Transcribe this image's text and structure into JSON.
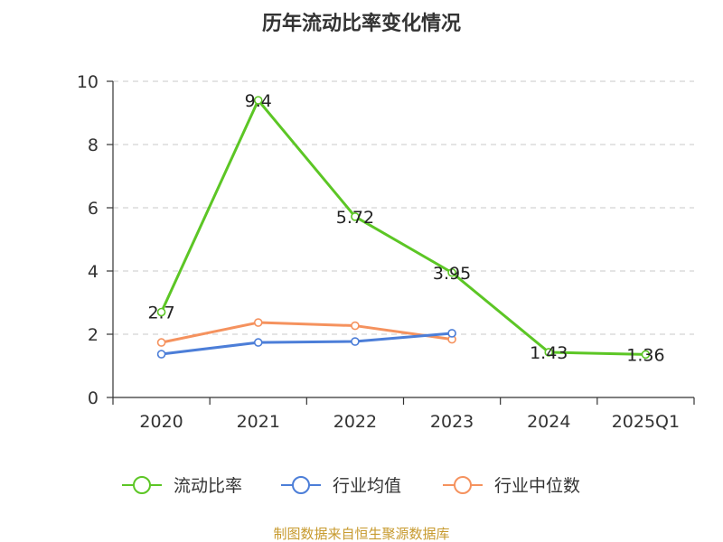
{
  "chart_data": {
    "type": "line",
    "title": "历年流动比率变化情况",
    "categories": [
      "2020",
      "2021",
      "2022",
      "2023",
      "2024",
      "2025Q1"
    ],
    "ylim": [
      0,
      10
    ],
    "yticks": [
      "0",
      "2",
      "4",
      "6",
      "8",
      "10"
    ],
    "grid": true,
    "legend_position": "bottom",
    "series": [
      {
        "name": "流动比率",
        "color": "#5cc625",
        "values": [
          2.7,
          9.4,
          5.72,
          3.95,
          1.43,
          1.36
        ],
        "labels": [
          "2.7",
          "9.4",
          "5.72",
          "3.95",
          "1.43",
          "1.36"
        ]
      },
      {
        "name": "行业均值",
        "color": "#4c7ed8",
        "values": [
          1.37,
          1.74,
          1.77,
          2.03,
          null,
          null
        ]
      },
      {
        "name": "行业中位数",
        "color": "#f5925e",
        "values": [
          1.74,
          2.37,
          2.27,
          1.84,
          null,
          null
        ]
      }
    ]
  },
  "source": "制图数据来自恒生聚源数据库"
}
